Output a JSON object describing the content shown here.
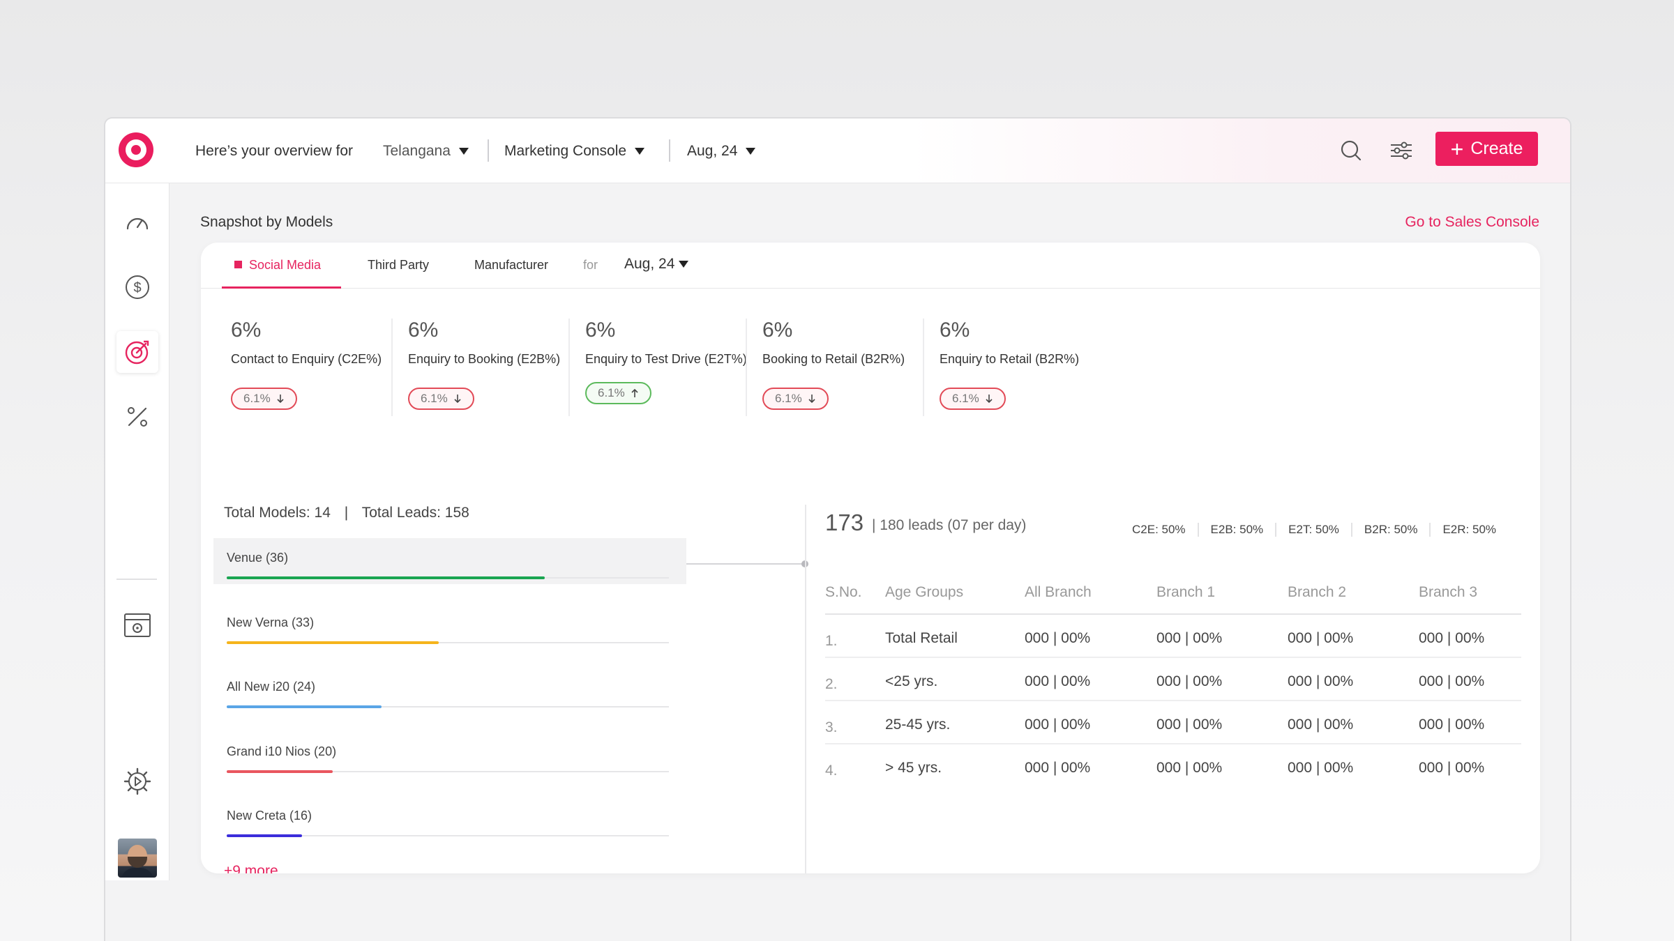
{
  "topbar": {
    "overview_label": "Here’s your overview for",
    "region": "Telangana",
    "console": "Marketing Console",
    "period": "Aug, 24",
    "create_label": "Create",
    "icons": [
      "search-icon",
      "filter-sliders-icon",
      "plus-icon"
    ]
  },
  "sidebar": {
    "items": [
      "dashboard-gauge-icon",
      "dollar-icon",
      "target-icon",
      "percent-icon",
      "calendar-icon",
      "settings-gear-icon"
    ],
    "active": "target-icon"
  },
  "main": {
    "title": "Snapshot by Models",
    "goto_link": "Go to Sales Console",
    "tabs": [
      {
        "label": "Social Media",
        "active": true
      },
      {
        "label": "Third Party",
        "active": false
      },
      {
        "label": "Manufacturer",
        "active": false
      }
    ],
    "tab_for": "for",
    "tab_period": "Aug, 24",
    "kpis": [
      {
        "value": "6%",
        "label": "Contact to Enquiry (C2E%)",
        "delta": "6.1%",
        "trend": "down"
      },
      {
        "value": "6%",
        "label": "Enquiry to Booking (E2B%)",
        "delta": "6.1%",
        "trend": "down"
      },
      {
        "value": "6%",
        "label": "Enquiry to Test Drive (E2T%)",
        "delta": "6.1%",
        "trend": "up"
      },
      {
        "value": "6%",
        "label": "Booking to Retail (B2R%)",
        "delta": "6.1%",
        "trend": "down"
      },
      {
        "value": "6%",
        "label": "Enquiry to Retail (B2R%)",
        "delta": "6.1%",
        "trend": "down"
      }
    ],
    "totals": {
      "models_label": "Total Models: 14",
      "sep": "|",
      "leads_label": "Total Leads: 158"
    },
    "models": [
      {
        "label": "Venue (36)",
        "fill": 0.72,
        "color": "#1aa551",
        "active": true
      },
      {
        "label": "New Verna (33)",
        "fill": 0.48,
        "color": "#f5b41c",
        "active": false
      },
      {
        "label": "All New i20 (24)",
        "fill": 0.35,
        "color": "#5aa5e6",
        "active": false
      },
      {
        "label": "Grand i10 Nios (20)",
        "fill": 0.24,
        "color": "#e9565f",
        "active": false
      },
      {
        "label": "New Creta (16)",
        "fill": 0.17,
        "color": "#3b2ddb",
        "active": false
      }
    ],
    "more_link": "+9 more",
    "detail": {
      "count": "173",
      "sub": "| 180 leads (07 per day)",
      "ratios": [
        "C2E: 50%",
        "E2B: 50%",
        "E2T: 50%",
        "B2R: 50%",
        "E2R: 50%"
      ],
      "columns": [
        "S.No.",
        "Age Groups",
        "All Branch",
        "Branch 1",
        "Branch 2",
        "Branch 3"
      ],
      "rows": [
        [
          "1.",
          "Total Retail",
          "000 | 00%",
          "000 | 00%",
          "000 | 00%",
          "000 | 00%"
        ],
        [
          "2.",
          "<25 yrs.",
          "000 | 00%",
          "000 | 00%",
          "000 | 00%",
          "000 | 00%"
        ],
        [
          "3.",
          "25-45 yrs.",
          "000 | 00%",
          "000 | 00%",
          "000 | 00%",
          "000 | 00%"
        ],
        [
          "4.",
          "> 45 yrs.",
          "000 | 00%",
          "000 | 00%",
          "000 | 00%",
          "000 | 00%"
        ]
      ]
    }
  },
  "colors": {
    "accent": "#ec1f5f",
    "down": "#e24a57",
    "up": "#5cba5c"
  }
}
